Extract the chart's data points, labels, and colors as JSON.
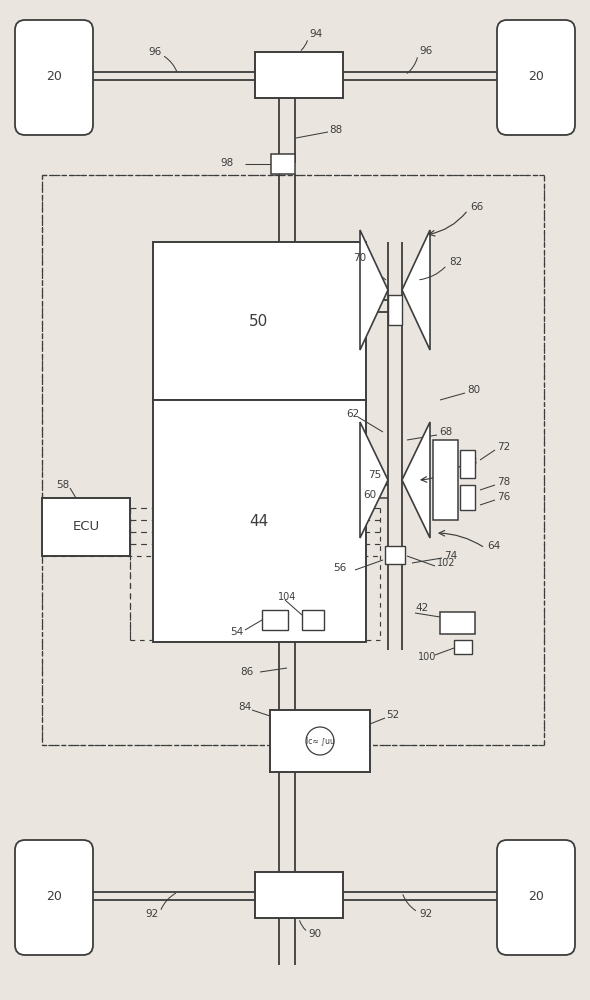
{
  "bg_color": "#eae6df",
  "line_color": "#3d3d3d",
  "figsize": [
    5.9,
    10.0
  ],
  "dpi": 100
}
